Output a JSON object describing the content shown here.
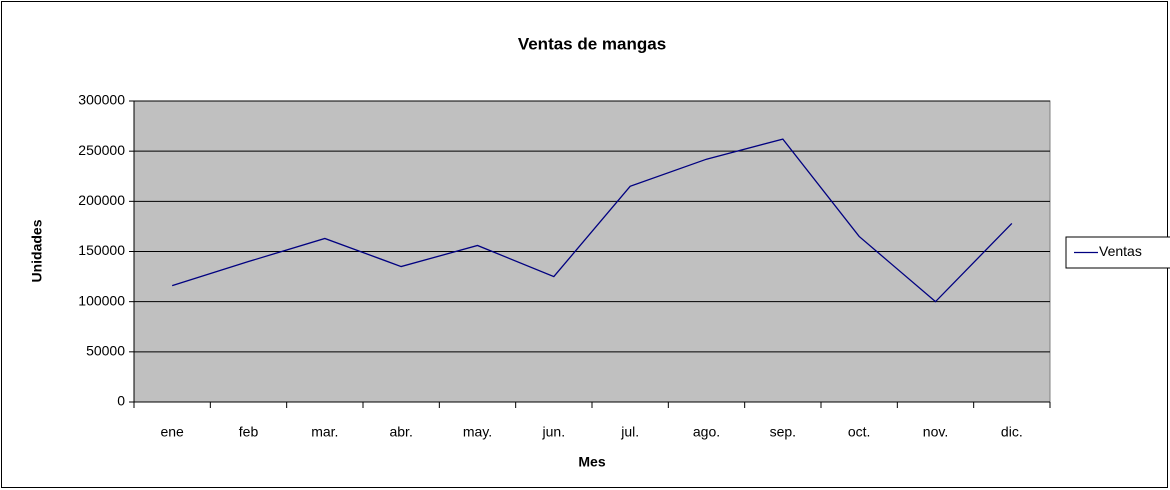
{
  "chart_data": {
    "type": "line",
    "title": "Ventas de mangas",
    "x_label": "Mes",
    "y_label": "Unidades",
    "categories": [
      "ene",
      "feb",
      "mar.",
      "abr.",
      "may.",
      "jun.",
      "jul.",
      "ago.",
      "sep.",
      "oct.",
      "nov.",
      "dic."
    ],
    "series": [
      {
        "name": "Ventas",
        "color": "#000080",
        "values": [
          116000,
          140000,
          163000,
          135000,
          156000,
          125000,
          215000,
          242000,
          262000,
          165000,
          100000,
          178000
        ]
      }
    ],
    "ylim": [
      0,
      300000
    ],
    "yticks": [
      0,
      50000,
      100000,
      150000,
      200000,
      250000,
      300000
    ],
    "grid": true,
    "legend": "right"
  }
}
